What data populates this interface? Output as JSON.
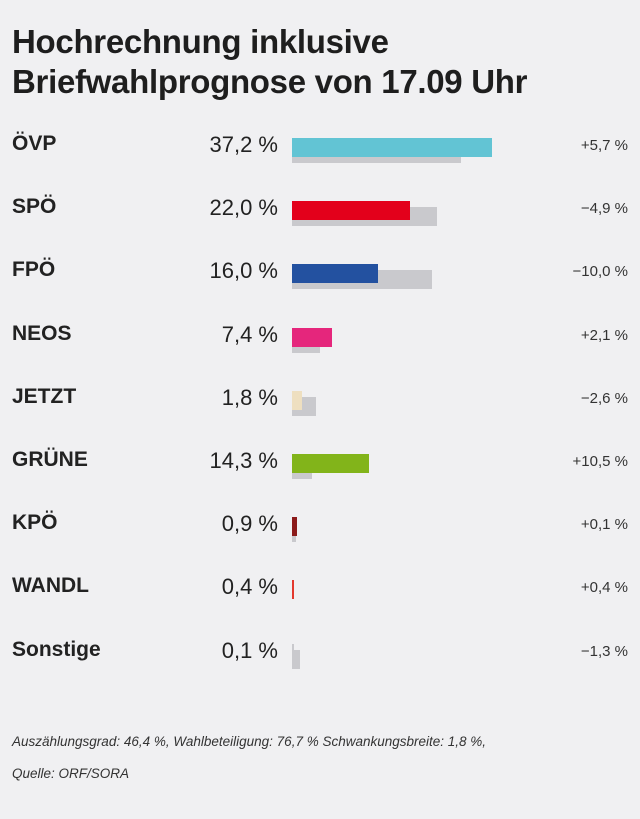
{
  "header": {
    "title_line1": "Hochrechnung inklusive",
    "title_line2": "Briefwahlprognose von 17.09 Uhr"
  },
  "chart_data": {
    "type": "bar",
    "title": "Hochrechnung inklusive Briefwahlprognose von 17.09 Uhr",
    "categories": [
      "ÖVP",
      "SPÖ",
      "FPÖ",
      "NEOS",
      "JETZT",
      "GRÜNE",
      "KPÖ",
      "WANDL",
      "Sonstige"
    ],
    "series": [
      {
        "values": [
          37.2,
          22.0,
          16.0,
          7.4,
          1.8,
          14.3,
          0.9,
          0.4,
          0.1
        ],
        "colors": [
          "#62c4d4",
          "#e3001b",
          "#2351a0",
          "#e5267c",
          "#eedfc0",
          "#82b41a",
          "#8b1a1a",
          "#e3392e",
          "#c9c9cd"
        ]
      },
      {
        "values": [
          31.5,
          26.9,
          26.0,
          5.3,
          4.4,
          3.8,
          0.8,
          0.0,
          1.4
        ],
        "color": "#c9c9cd"
      }
    ],
    "labels": [
      "37,2 %",
      "22,0 %",
      "16,0 %",
      "7,4 %",
      "1,8 %",
      "14,3 %",
      "0,9 %",
      "0,4 %",
      "0,1 %"
    ],
    "changes": [
      "+5,7 %",
      "−4,9 %",
      "−10,0 %",
      "+2,1 %",
      "−2,6 %",
      "+10,5 %",
      "+0,1 %",
      "+0,4 %",
      "−1,3 %"
    ]
  },
  "footer": {
    "stats": "Auszählungsgrad: 46,4 %, Wahlbeteiligung: 76,7 % Schwankungsbreite: 1,8 %,",
    "source": "Quelle: ORF/SORA"
  }
}
